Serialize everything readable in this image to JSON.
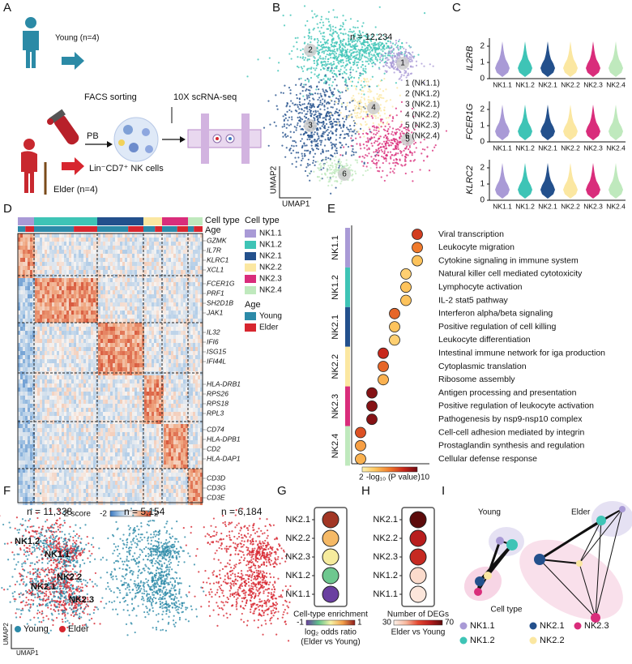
{
  "panel_labels": [
    "A",
    "B",
    "C",
    "D",
    "E",
    "F",
    "G",
    "H",
    "I"
  ],
  "cell_types": [
    {
      "name": "NK1.1",
      "color": "#a99ad6"
    },
    {
      "name": "NK1.2",
      "color": "#3ec4b6"
    },
    {
      "name": "NK2.1",
      "color": "#23508c"
    },
    {
      "name": "NK2.2",
      "color": "#fbe7a1"
    },
    {
      "name": "NK2.3",
      "color": "#d92d7b"
    },
    {
      "name": "NK2.4",
      "color": "#bfe9bd"
    }
  ],
  "ages": [
    {
      "name": "Young",
      "color": "#2c8aa8"
    },
    {
      "name": "Elder",
      "color": "#d7262f"
    }
  ],
  "a": {
    "young": "Young (n=4)",
    "elder": "Elder (n=4)",
    "facs": "FACS sorting",
    "seq": "10X scRNA-seq",
    "pb": "PB",
    "cells": "Lin⁻CD7⁺ NK cells"
  },
  "b": {
    "n": "n = 12,234",
    "cluster_labels": [
      "1",
      "2",
      "3",
      "4",
      "5",
      "6"
    ],
    "legend": [
      "1 (NK1.1)",
      "2 (NK1.2)",
      "3 (NK2.1)",
      "4 (NK2.2)",
      "5 (NK2.3)",
      "6 (NK2.4)"
    ],
    "xlabel": "UMAP1",
    "ylabel": "UMAP2"
  },
  "c": {
    "genes": [
      "IL2RB",
      "FCER1G",
      "KLRC2"
    ],
    "ylim": [
      0,
      2.5
    ],
    "yticks": [
      0,
      1,
      2
    ]
  },
  "d": {
    "track_labels": [
      "Cell type",
      "Age"
    ],
    "legend_type_title": "Cell type",
    "legend_age_title": "Age",
    "gene_groups": [
      [
        "GZMK",
        "IL7R",
        "KLRC1",
        "XCL1"
      ],
      [
        "FCER1G",
        "PRF1",
        "SH2D1B",
        "JAK1"
      ],
      [
        "IL32",
        "IFI6",
        "ISG15",
        "IFI44L"
      ],
      [
        "HLA-DRB1",
        "RPS26",
        "RPS18",
        "RPL3"
      ],
      [
        "CD74",
        "HLA-DPB1",
        "CD2",
        "HLA-DAP1"
      ],
      [
        "CD3D",
        "CD3G",
        "CD3E"
      ]
    ],
    "colorbar_label": "Z score",
    "colorbar_ticks": [
      -2,
      2
    ],
    "colormap": [
      "#3a78c0",
      "#a9c8e6",
      "#f7f4f2",
      "#f0a882",
      "#d2452c"
    ]
  },
  "e": {
    "groups": [
      {
        "name": "NK1.1",
        "pathways": [
          {
            "name": "Viral transcription",
            "value": 7.5
          },
          {
            "name": "Leukocyte migration",
            "value": 6
          },
          {
            "name": "Cytokine signaling in immune system",
            "value": 4
          }
        ]
      },
      {
        "name": "NK1.2",
        "pathways": [
          {
            "name": "Natural killer cell mediated cytotoxicity",
            "value": 3.5
          },
          {
            "name": "Lymphocyte activation",
            "value": 4
          },
          {
            "name": "IL-2 stat5 pathway",
            "value": 4
          }
        ]
      },
      {
        "name": "NK2.1",
        "pathways": [
          {
            "name": "Interferon alpha/beta signaling",
            "value": 6.5
          },
          {
            "name": "Positive regulation of cell killing",
            "value": 4
          },
          {
            "name": "Leukocyte differentiation",
            "value": 3.5
          }
        ]
      },
      {
        "name": "NK2.2",
        "pathways": [
          {
            "name": "Intestinal immune network for iga production",
            "value": 8
          },
          {
            "name": "Cytoplasmic translation",
            "value": 6.5
          },
          {
            "name": "Ribosome assembly",
            "value": 4.5
          }
        ]
      },
      {
        "name": "NK2.3",
        "pathways": [
          {
            "name": "Antigen processing and presentation",
            "value": 9.5
          },
          {
            "name": "Positive regulation of leukocyte activation",
            "value": 9.5
          },
          {
            "name": "Pathogenesis by nsp9-nsp10 complex",
            "value": 9.5
          }
        ]
      },
      {
        "name": "NK2.4",
        "pathways": [
          {
            "name": "Cell-cell adhesion mediated by integrin",
            "value": 7
          },
          {
            "name": "Prostaglandin synthesis and regulation",
            "value": 5
          },
          {
            "name": "Cellular defense response",
            "value": 4.5
          }
        ]
      }
    ],
    "clim": [
      2,
      10
    ],
    "colorbar_ticks": [
      2,
      10
    ],
    "colorbar_label": "-log₁₀ (P value)",
    "colormap": [
      "#fff3b0",
      "#fdc35c",
      "#f07a2c",
      "#c8281c",
      "#6e0a12"
    ]
  },
  "f": {
    "panels": [
      "n = 11,338",
      "n = 5,154",
      "n = 6,184"
    ],
    "cluster_labels": [
      "NK1.2",
      "NK1.1",
      "NK2.1",
      "NK2.2",
      "NK2.3"
    ],
    "xlabel": "UMAP1",
    "ylabel": "UMAP2"
  },
  "g": {
    "categories": [
      "NK2.1",
      "NK2.2",
      "NK2.3",
      "NK1.2",
      "NK1.1"
    ],
    "values": [
      0.9,
      0.35,
      0.05,
      -0.45,
      -1
    ],
    "clim": [
      -1,
      1
    ],
    "colorbar_ticks": [
      -1,
      1
    ],
    "title": "Cell-type enrichment",
    "label": "log₂ odds ratio",
    "sublabel": "(Elder vs Young)",
    "colormap": [
      "#6a3fa0",
      "#5fc38c",
      "#f6f3a6",
      "#f4a04a",
      "#8e1b1b"
    ]
  },
  "h": {
    "categories": [
      "NK2.1",
      "NK2.2",
      "NK2.3",
      "NK1.2",
      "NK1.1"
    ],
    "values": [
      70,
      60,
      57,
      34,
      32
    ],
    "clim": [
      30,
      70
    ],
    "colorbar_ticks": [
      30,
      70
    ],
    "title": "Number of DEGs",
    "label": "Elder vs Young",
    "colormap": [
      "#fdf2ea",
      "#f8b89e",
      "#e5472f",
      "#b81d1d",
      "#5c0b0b"
    ]
  },
  "i": {
    "groups": [
      "Young",
      "Elder"
    ],
    "legend_title": "Cell type"
  }
}
